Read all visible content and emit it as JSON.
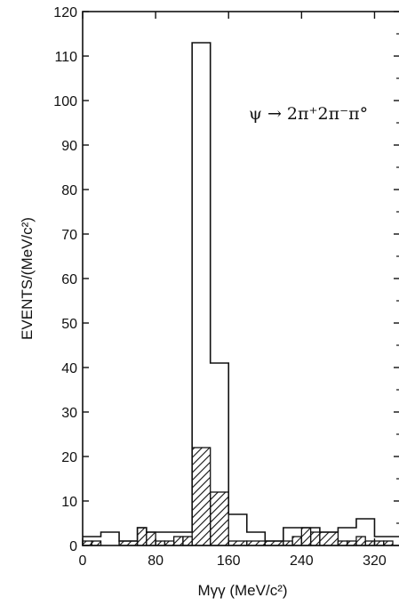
{
  "chart_data": {
    "type": "bar",
    "title": "",
    "annotation": "ψ → 2π⁺2π⁻π°",
    "xlabel": "Mγγ  (MeV/c²)",
    "ylabel": "EVENTS/(MeV/c²)",
    "xlim": [
      0,
      350
    ],
    "ylim": [
      0,
      120
    ],
    "x_ticks": [
      0,
      80,
      160,
      240,
      320
    ],
    "y_ticks": [
      0,
      10,
      20,
      30,
      40,
      50,
      60,
      70,
      80,
      90,
      100,
      110,
      120
    ],
    "bin_width": 20,
    "series": [
      {
        "style": "open",
        "bins": [
          {
            "x0": 0,
            "x1": 10,
            "value": 2
          },
          {
            "x0": 10,
            "x1": 20,
            "value": 2
          },
          {
            "x0": 20,
            "x1": 30,
            "value": 3
          },
          {
            "x0": 30,
            "x1": 40,
            "value": 3
          },
          {
            "x0": 40,
            "x1": 50,
            "value": 1
          },
          {
            "x0": 50,
            "x1": 60,
            "value": 1
          },
          {
            "x0": 60,
            "x1": 70,
            "value": 4
          },
          {
            "x0": 70,
            "x1": 80,
            "value": 3
          },
          {
            "x0": 80,
            "x1": 90,
            "value": 3
          },
          {
            "x0": 90,
            "x1": 100,
            "value": 3
          },
          {
            "x0": 100,
            "x1": 110,
            "value": 3
          },
          {
            "x0": 110,
            "x1": 120,
            "value": 3
          },
          {
            "x0": 120,
            "x1": 140,
            "value": 113
          },
          {
            "x0": 140,
            "x1": 160,
            "value": 41
          },
          {
            "x0": 160,
            "x1": 180,
            "value": 7
          },
          {
            "x0": 180,
            "x1": 200,
            "value": 3
          },
          {
            "x0": 200,
            "x1": 220,
            "value": 1
          },
          {
            "x0": 220,
            "x1": 240,
            "value": 4
          },
          {
            "x0": 240,
            "x1": 260,
            "value": 4
          },
          {
            "x0": 260,
            "x1": 280,
            "value": 3
          },
          {
            "x0": 280,
            "x1": 300,
            "value": 4
          },
          {
            "x0": 300,
            "x1": 320,
            "value": 6
          },
          {
            "x0": 320,
            "x1": 340,
            "value": 2
          },
          {
            "x0": 340,
            "x1": 350,
            "value": 2
          }
        ]
      },
      {
        "style": "hatched",
        "bins": [
          {
            "x0": 0,
            "x1": 10,
            "value": 1
          },
          {
            "x0": 10,
            "x1": 20,
            "value": 1
          },
          {
            "x0": 40,
            "x1": 60,
            "value": 1
          },
          {
            "x0": 60,
            "x1": 70,
            "value": 4
          },
          {
            "x0": 70,
            "x1": 80,
            "value": 3
          },
          {
            "x0": 80,
            "x1": 90,
            "value": 1
          },
          {
            "x0": 90,
            "x1": 100,
            "value": 1
          },
          {
            "x0": 100,
            "x1": 110,
            "value": 2
          },
          {
            "x0": 110,
            "x1": 120,
            "value": 2
          },
          {
            "x0": 120,
            "x1": 140,
            "value": 22
          },
          {
            "x0": 140,
            "x1": 160,
            "value": 12
          },
          {
            "x0": 160,
            "x1": 180,
            "value": 1
          },
          {
            "x0": 180,
            "x1": 200,
            "value": 1
          },
          {
            "x0": 200,
            "x1": 220,
            "value": 1
          },
          {
            "x0": 220,
            "x1": 230,
            "value": 1
          },
          {
            "x0": 230,
            "x1": 240,
            "value": 2
          },
          {
            "x0": 240,
            "x1": 250,
            "value": 4
          },
          {
            "x0": 250,
            "x1": 260,
            "value": 3
          },
          {
            "x0": 260,
            "x1": 280,
            "value": 3
          },
          {
            "x0": 280,
            "x1": 290,
            "value": 1
          },
          {
            "x0": 290,
            "x1": 300,
            "value": 1
          },
          {
            "x0": 300,
            "x1": 310,
            "value": 2
          },
          {
            "x0": 310,
            "x1": 320,
            "value": 1
          },
          {
            "x0": 320,
            "x1": 330,
            "value": 1
          },
          {
            "x0": 330,
            "x1": 340,
            "value": 1
          }
        ]
      }
    ],
    "colors": {
      "ink": "#111111",
      "background": "#ffffff"
    }
  }
}
